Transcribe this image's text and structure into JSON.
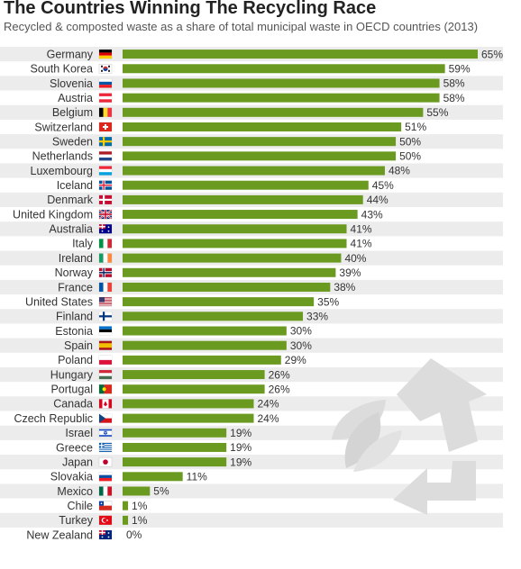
{
  "chart_data": {
    "type": "bar",
    "orientation": "horizontal",
    "title": "The Countries Winning The Recycling Race",
    "subtitle": "Recycled & composted waste as a share of total municipal waste in OECD countries (2013)",
    "value_suffix": "%",
    "xlim": [
      0,
      65
    ],
    "grid": false,
    "categories": [
      "Germany",
      "South Korea",
      "Slovenia",
      "Austria",
      "Belgium",
      "Switzerland",
      "Sweden",
      "Netherlands",
      "Luxembourg",
      "Iceland",
      "Denmark",
      "United Kingdom",
      "Australia",
      "Italy",
      "Ireland",
      "Norway",
      "France",
      "United States",
      "Finland",
      "Estonia",
      "Spain",
      "Poland",
      "Hungary",
      "Portugal",
      "Canada",
      "Czech Republic",
      "Israel",
      "Greece",
      "Japan",
      "Slovakia",
      "Mexico",
      "Chile",
      "Turkey",
      "New Zealand"
    ],
    "values": [
      65,
      59,
      58,
      58,
      55,
      51,
      50,
      50,
      48,
      45,
      44,
      43,
      41,
      41,
      40,
      39,
      38,
      35,
      33,
      30,
      30,
      29,
      26,
      26,
      24,
      24,
      19,
      19,
      19,
      11,
      5,
      1,
      1,
      0
    ],
    "flag_icons": [
      "flag-germany-icon",
      "flag-south-korea-icon",
      "flag-slovenia-icon",
      "flag-austria-icon",
      "flag-belgium-icon",
      "flag-switzerland-icon",
      "flag-sweden-icon",
      "flag-netherlands-icon",
      "flag-luxembourg-icon",
      "flag-iceland-icon",
      "flag-denmark-icon",
      "flag-united-kingdom-icon",
      "flag-australia-icon",
      "flag-italy-icon",
      "flag-ireland-icon",
      "flag-norway-icon",
      "flag-france-icon",
      "flag-united-states-icon",
      "flag-finland-icon",
      "flag-estonia-icon",
      "flag-spain-icon",
      "flag-poland-icon",
      "flag-hungary-icon",
      "flag-portugal-icon",
      "flag-canada-icon",
      "flag-czech-republic-icon",
      "flag-israel-icon",
      "flag-greece-icon",
      "flag-japan-icon",
      "flag-slovakia-icon",
      "flag-mexico-icon",
      "flag-chile-icon",
      "flag-turkey-icon",
      "flag-new-zealand-icon"
    ]
  },
  "colors": {
    "bar": "#6a9a1f",
    "row_alt": "#ececec",
    "watermark": "#dedede"
  },
  "watermark_icon": "recycling-symbol-icon"
}
